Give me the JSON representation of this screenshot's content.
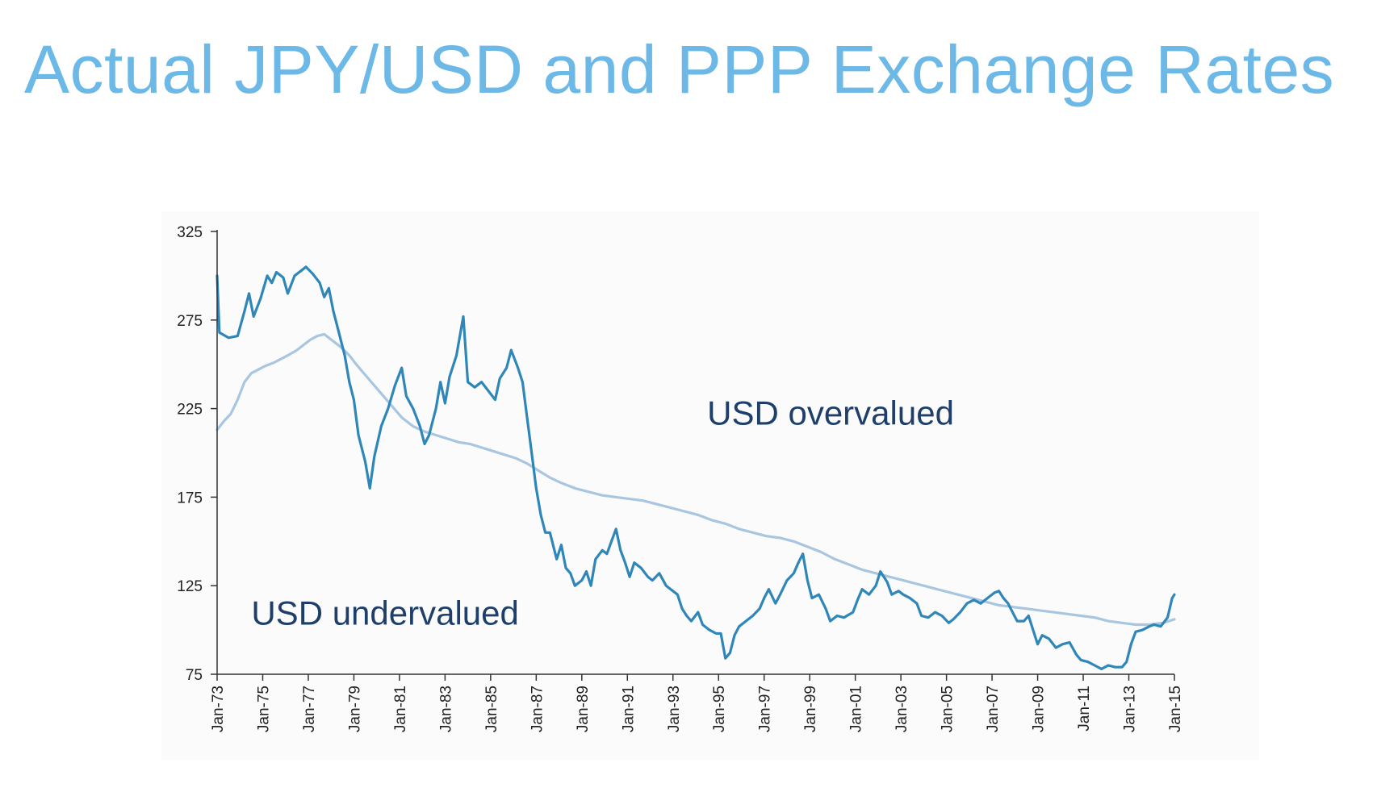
{
  "title": "Actual JPY/USD and PPP Exchange Rates",
  "chart_data": {
    "type": "line",
    "title": "Actual JPY/USD and PPP Exchange Rates",
    "xlabel": "",
    "ylabel": "",
    "xlim": [
      1973,
      2015
    ],
    "ylim": [
      75,
      325
    ],
    "y_ticks": [
      "325",
      "275",
      "225",
      "175",
      "125",
      "75"
    ],
    "y_tick_values": [
      325,
      275,
      225,
      175,
      125,
      75
    ],
    "x_ticks": [
      "Jan-73",
      "Jan-75",
      "Jan-77",
      "Jan-79",
      "Jan-81",
      "Jan-83",
      "Jan-85",
      "Jan-87",
      "Jan-89",
      "Jan-91",
      "Jan-93",
      "Jan-95",
      "Jan-97",
      "Jan-99",
      "Jan-01",
      "Jan-03",
      "Jan-05",
      "Jan-07",
      "Jan-09",
      "Jan-11",
      "Jan-13",
      "Jan-15"
    ],
    "x_tick_values": [
      1973,
      1975,
      1977,
      1979,
      1981,
      1983,
      1985,
      1987,
      1989,
      1991,
      1993,
      1995,
      1997,
      1999,
      2001,
      2003,
      2005,
      2007,
      2009,
      2011,
      2013,
      2015
    ],
    "grid": false,
    "legend": "none",
    "annotations": [
      {
        "text": "USD overvalued",
        "x": 1994.5,
        "y": 216
      },
      {
        "text": "USD undervalued",
        "x": 1974.5,
        "y": 103
      }
    ],
    "series": [
      {
        "color": "#2e86b9",
        "width": 3.2,
        "points": [
          [
            1973.0,
            300
          ],
          [
            1973.1,
            268
          ],
          [
            1973.5,
            265
          ],
          [
            1973.9,
            266
          ],
          [
            1974.2,
            280
          ],
          [
            1974.4,
            290
          ],
          [
            1974.6,
            277
          ],
          [
            1974.9,
            287
          ],
          [
            1975.2,
            300
          ],
          [
            1975.4,
            296
          ],
          [
            1975.6,
            302
          ],
          [
            1975.9,
            299
          ],
          [
            1976.1,
            290
          ],
          [
            1976.4,
            300
          ],
          [
            1976.7,
            303
          ],
          [
            1976.9,
            305
          ],
          [
            1977.2,
            301
          ],
          [
            1977.5,
            296
          ],
          [
            1977.7,
            288
          ],
          [
            1977.9,
            293
          ],
          [
            1978.1,
            280
          ],
          [
            1978.3,
            270
          ],
          [
            1978.6,
            255
          ],
          [
            1978.8,
            240
          ],
          [
            1979.0,
            230
          ],
          [
            1979.2,
            210
          ],
          [
            1979.5,
            195
          ],
          [
            1979.7,
            180
          ],
          [
            1979.9,
            198
          ],
          [
            1980.2,
            215
          ],
          [
            1980.5,
            225
          ],
          [
            1980.8,
            238
          ],
          [
            1981.1,
            248
          ],
          [
            1981.3,
            232
          ],
          [
            1981.6,
            225
          ],
          [
            1981.9,
            215
          ],
          [
            1982.1,
            205
          ],
          [
            1982.3,
            210
          ],
          [
            1982.6,
            225
          ],
          [
            1982.8,
            240
          ],
          [
            1983.0,
            228
          ],
          [
            1983.2,
            243
          ],
          [
            1983.5,
            255
          ],
          [
            1983.8,
            277
          ],
          [
            1984.0,
            240
          ],
          [
            1984.3,
            237
          ],
          [
            1984.6,
            240
          ],
          [
            1984.9,
            235
          ],
          [
            1985.2,
            230
          ],
          [
            1985.4,
            242
          ],
          [
            1985.7,
            248
          ],
          [
            1985.9,
            258
          ],
          [
            1986.2,
            248
          ],
          [
            1986.4,
            240
          ],
          [
            1986.6,
            220
          ],
          [
            1986.8,
            200
          ],
          [
            1987.0,
            180
          ],
          [
            1987.2,
            165
          ],
          [
            1987.4,
            155
          ],
          [
            1987.6,
            155
          ],
          [
            1987.9,
            140
          ],
          [
            1988.1,
            148
          ],
          [
            1988.3,
            135
          ],
          [
            1988.5,
            132
          ],
          [
            1988.7,
            125
          ],
          [
            1989.0,
            128
          ],
          [
            1989.2,
            133
          ],
          [
            1989.4,
            125
          ],
          [
            1989.6,
            140
          ],
          [
            1989.9,
            145
          ],
          [
            1990.1,
            143
          ],
          [
            1990.3,
            150
          ],
          [
            1990.5,
            157
          ],
          [
            1990.7,
            145
          ],
          [
            1990.9,
            138
          ],
          [
            1991.1,
            130
          ],
          [
            1991.3,
            138
          ],
          [
            1991.6,
            135
          ],
          [
            1991.9,
            130
          ],
          [
            1992.1,
            128
          ],
          [
            1992.4,
            132
          ],
          [
            1992.7,
            125
          ],
          [
            1992.9,
            123
          ],
          [
            1993.2,
            120
          ],
          [
            1993.4,
            112
          ],
          [
            1993.6,
            108
          ],
          [
            1993.8,
            105
          ],
          [
            1994.1,
            110
          ],
          [
            1994.3,
            103
          ],
          [
            1994.6,
            100
          ],
          [
            1994.9,
            98
          ],
          [
            1995.1,
            98
          ],
          [
            1995.3,
            84
          ],
          [
            1995.5,
            87
          ],
          [
            1995.7,
            97
          ],
          [
            1995.9,
            102
          ],
          [
            1996.2,
            105
          ],
          [
            1996.5,
            108
          ],
          [
            1996.8,
            112
          ],
          [
            1997.0,
            118
          ],
          [
            1997.2,
            123
          ],
          [
            1997.5,
            115
          ],
          [
            1997.7,
            120
          ],
          [
            1998.0,
            128
          ],
          [
            1998.3,
            132
          ],
          [
            1998.5,
            138
          ],
          [
            1998.7,
            143
          ],
          [
            1998.9,
            128
          ],
          [
            1999.1,
            118
          ],
          [
            1999.4,
            120
          ],
          [
            1999.7,
            112
          ],
          [
            1999.9,
            105
          ],
          [
            2000.2,
            108
          ],
          [
            2000.5,
            107
          ],
          [
            2000.9,
            110
          ],
          [
            2001.1,
            117
          ],
          [
            2001.3,
            123
          ],
          [
            2001.6,
            120
          ],
          [
            2001.9,
            125
          ],
          [
            2002.1,
            133
          ],
          [
            2002.4,
            127
          ],
          [
            2002.6,
            120
          ],
          [
            2002.9,
            122
          ],
          [
            2003.1,
            120
          ],
          [
            2003.4,
            118
          ],
          [
            2003.7,
            115
          ],
          [
            2003.9,
            108
          ],
          [
            2004.2,
            107
          ],
          [
            2004.5,
            110
          ],
          [
            2004.8,
            108
          ],
          [
            2005.1,
            104
          ],
          [
            2005.3,
            106
          ],
          [
            2005.6,
            110
          ],
          [
            2005.9,
            115
          ],
          [
            2006.2,
            117
          ],
          [
            2006.5,
            115
          ],
          [
            2006.8,
            118
          ],
          [
            2007.1,
            121
          ],
          [
            2007.3,
            122
          ],
          [
            2007.5,
            118
          ],
          [
            2007.7,
            115
          ],
          [
            2007.9,
            110
          ],
          [
            2008.1,
            105
          ],
          [
            2008.4,
            105
          ],
          [
            2008.6,
            108
          ],
          [
            2008.8,
            100
          ],
          [
            2009.0,
            92
          ],
          [
            2009.2,
            97
          ],
          [
            2009.5,
            95
          ],
          [
            2009.8,
            90
          ],
          [
            2010.1,
            92
          ],
          [
            2010.4,
            93
          ],
          [
            2010.7,
            86
          ],
          [
            2010.9,
            83
          ],
          [
            2011.2,
            82
          ],
          [
            2011.5,
            80
          ],
          [
            2011.8,
            78
          ],
          [
            2012.1,
            80
          ],
          [
            2012.4,
            79
          ],
          [
            2012.7,
            79
          ],
          [
            2012.9,
            82
          ],
          [
            2013.1,
            92
          ],
          [
            2013.3,
            99
          ],
          [
            2013.6,
            100
          ],
          [
            2013.9,
            102
          ],
          [
            2014.1,
            103
          ],
          [
            2014.4,
            102
          ],
          [
            2014.7,
            107
          ],
          [
            2014.9,
            118
          ],
          [
            2015.0,
            120
          ]
        ]
      },
      {
        "color": "#a9c6e0",
        "width": 3.2,
        "points": [
          [
            1973.0,
            213
          ],
          [
            1973.3,
            218
          ],
          [
            1973.6,
            222
          ],
          [
            1973.9,
            230
          ],
          [
            1974.2,
            240
          ],
          [
            1974.5,
            245
          ],
          [
            1974.8,
            247
          ],
          [
            1975.1,
            249
          ],
          [
            1975.5,
            251
          ],
          [
            1975.8,
            253
          ],
          [
            1976.1,
            255
          ],
          [
            1976.5,
            258
          ],
          [
            1976.8,
            261
          ],
          [
            1977.1,
            264
          ],
          [
            1977.4,
            266
          ],
          [
            1977.7,
            267
          ],
          [
            1978.0,
            264
          ],
          [
            1978.4,
            260
          ],
          [
            1978.8,
            255
          ],
          [
            1979.1,
            250
          ],
          [
            1979.5,
            244
          ],
          [
            1979.9,
            238
          ],
          [
            1980.3,
            232
          ],
          [
            1980.7,
            226
          ],
          [
            1981.1,
            220
          ],
          [
            1981.6,
            215
          ],
          [
            1982.1,
            212
          ],
          [
            1982.6,
            210
          ],
          [
            1983.1,
            208
          ],
          [
            1983.6,
            206
          ],
          [
            1984.1,
            205
          ],
          [
            1984.6,
            203
          ],
          [
            1985.1,
            201
          ],
          [
            1985.6,
            199
          ],
          [
            1986.1,
            197
          ],
          [
            1986.6,
            194
          ],
          [
            1987.1,
            190
          ],
          [
            1987.6,
            186
          ],
          [
            1988.1,
            183
          ],
          [
            1988.7,
            180
          ],
          [
            1989.3,
            178
          ],
          [
            1989.9,
            176
          ],
          [
            1990.5,
            175
          ],
          [
            1991.1,
            174
          ],
          [
            1991.7,
            173
          ],
          [
            1992.3,
            171
          ],
          [
            1992.9,
            169
          ],
          [
            1993.5,
            167
          ],
          [
            1994.1,
            165
          ],
          [
            1994.7,
            162
          ],
          [
            1995.3,
            160
          ],
          [
            1995.9,
            157
          ],
          [
            1996.5,
            155
          ],
          [
            1997.1,
            153
          ],
          [
            1997.7,
            152
          ],
          [
            1998.3,
            150
          ],
          [
            1998.9,
            147
          ],
          [
            1999.5,
            144
          ],
          [
            2000.1,
            140
          ],
          [
            2000.7,
            137
          ],
          [
            2001.3,
            134
          ],
          [
            2001.9,
            132
          ],
          [
            2002.5,
            130
          ],
          [
            2003.1,
            128
          ],
          [
            2003.7,
            126
          ],
          [
            2004.3,
            124
          ],
          [
            2004.9,
            122
          ],
          [
            2005.5,
            120
          ],
          [
            2006.1,
            118
          ],
          [
            2006.7,
            116
          ],
          [
            2007.3,
            114
          ],
          [
            2007.9,
            113
          ],
          [
            2008.5,
            112
          ],
          [
            2009.1,
            111
          ],
          [
            2009.7,
            110
          ],
          [
            2010.3,
            109
          ],
          [
            2010.9,
            108
          ],
          [
            2011.5,
            107
          ],
          [
            2012.1,
            105
          ],
          [
            2012.7,
            104
          ],
          [
            2013.3,
            103
          ],
          [
            2013.9,
            103
          ],
          [
            2014.5,
            104
          ],
          [
            2015.0,
            106
          ]
        ]
      }
    ]
  }
}
